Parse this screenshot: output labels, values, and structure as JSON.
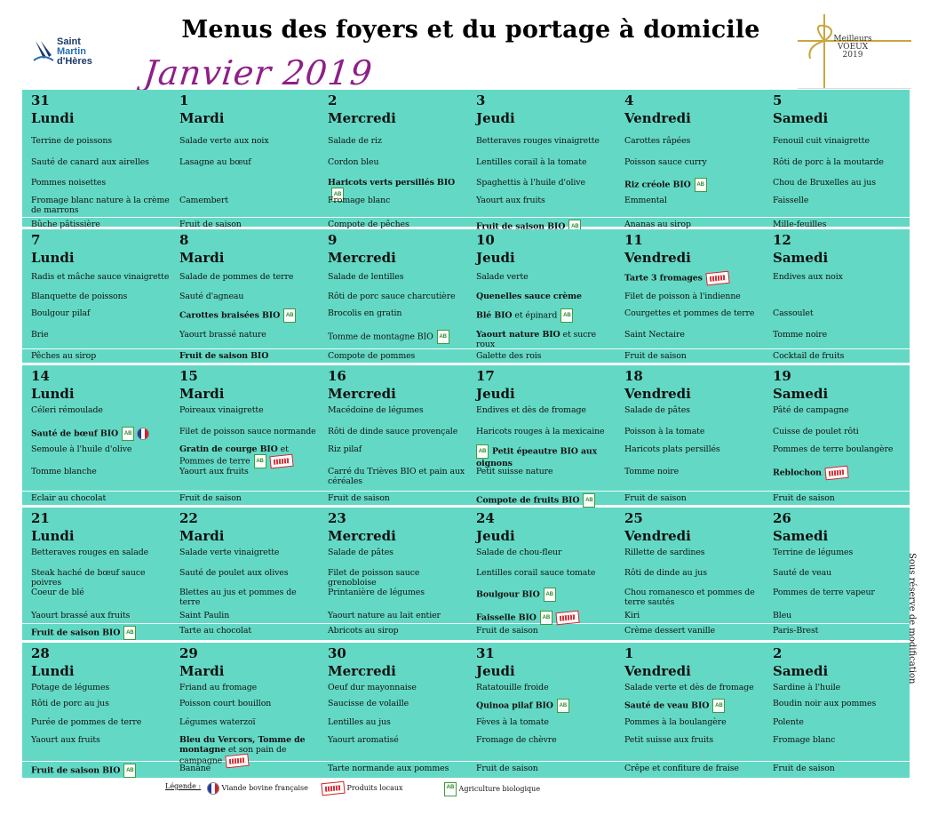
{
  "header": {
    "logo_lines": [
      "Saint",
      "Martin",
      "d'Hères"
    ],
    "title": "Menus des foyers et du portage à domicile",
    "month": "Janvier 2019",
    "greeting_lines": [
      "Meilleurs",
      "VOEUX",
      "2019"
    ]
  },
  "side_note": "Sous réserve de modification",
  "legend": {
    "label": "Légende :",
    "items": [
      "Viande bovine française",
      "Produits locaux",
      "Agriculture biologique"
    ]
  },
  "weeks": [
    {
      "days": [
        {
          "num": "31",
          "wd": "Lundi",
          "dishes": [
            {
              "t": "Terrine de poissons"
            },
            {
              "t": "Sauté de canard aux airelles"
            },
            {
              "t": "Pommes noisettes"
            },
            {
              "t": "Fromage blanc nature à la crème de marrons"
            },
            {
              "t": "Bûche pâtissière"
            }
          ]
        },
        {
          "num": "1",
          "wd": "Mardi",
          "dishes": [
            {
              "t": "Salade verte aux noix"
            },
            {
              "t": "Lasagne au bœuf"
            },
            {
              "t": ""
            },
            {
              "t": "Camembert"
            },
            {
              "t": "Fruit de saison"
            }
          ]
        },
        {
          "num": "2",
          "wd": "Mercredi",
          "dishes": [
            {
              "t": "Salade de riz"
            },
            {
              "t": "Cordon bleu"
            },
            {
              "t": "Haricots verts persillés BIO",
              "b": true,
              "bio": true
            },
            {
              "t": "Fromage blanc"
            },
            {
              "t": "Compote de pêches"
            }
          ]
        },
        {
          "num": "3",
          "wd": "Jeudi",
          "dishes": [
            {
              "t": "Betteraves rouges vinaigrette"
            },
            {
              "t": "Lentilles corail à la tomate"
            },
            {
              "t": "Spaghettis à l'huile d'olive"
            },
            {
              "t": "Yaourt aux fruits"
            },
            {
              "t": "Fruit de saison BIO",
              "b": true,
              "bio": true
            }
          ]
        },
        {
          "num": "4",
          "wd": "Vendredi",
          "dishes": [
            {
              "t": "Carottes râpées"
            },
            {
              "t": "Poisson sauce curry"
            },
            {
              "t": "Riz créole BIO",
              "b": true,
              "bio": true
            },
            {
              "t": "Emmental"
            },
            {
              "t": "Ananas au sirop"
            }
          ]
        },
        {
          "num": "5",
          "wd": "Samedi",
          "dishes": [
            {
              "t": "Fenouil cuit vinaigrette"
            },
            {
              "t": "Rôti de porc à la moutarde"
            },
            {
              "t": "Chou de Bruxelles au jus"
            },
            {
              "t": "Faisselle"
            },
            {
              "t": "Mille-feuilles"
            }
          ]
        }
      ]
    },
    {
      "days": [
        {
          "num": "7",
          "wd": "Lundi",
          "dishes": [
            {
              "t": "Radis et mâche sauce vinaigrette"
            },
            {
              "t": "Blanquette de poissons"
            },
            {
              "t": "Boulgour pilaf"
            },
            {
              "t": "Brie"
            },
            {
              "t": "Pêches au sirop"
            }
          ]
        },
        {
          "num": "8",
          "wd": "Mardi",
          "dishes": [
            {
              "t": "Salade de pommes de terre"
            },
            {
              "t": "Sauté d'agneau"
            },
            {
              "t": "Carottes braisées BIO",
              "b": true,
              "bio": true
            },
            {
              "t": "Yaourt brassé nature"
            },
            {
              "t": "Fruit de saison BIO",
              "b": true
            }
          ]
        },
        {
          "num": "9",
          "wd": "Mercredi",
          "dishes": [
            {
              "t": "Salade de lentilles"
            },
            {
              "t": "Rôti de porc sauce charcutière"
            },
            {
              "t": "Brocolis en gratin"
            },
            {
              "t": "Tomme de montagne BIO",
              "bio": true
            },
            {
              "t": "Compote de pommes"
            }
          ]
        },
        {
          "num": "10",
          "wd": "Jeudi",
          "dishes": [
            {
              "t": "Salade verte"
            },
            {
              "t": "Quenelles sauce crème",
              "b": true
            },
            {
              "t": "Blé BIO et épinard",
              "bb": "Blé BIO",
              "rest": " et épinard",
              "bio": true
            },
            {
              "t": "Yaourt nature BIO et sucre roux",
              "bb": "Yaourt nature BIO",
              "rest": " et sucre roux"
            },
            {
              "t": "Galette des rois"
            }
          ]
        },
        {
          "num": "11",
          "wd": "Vendredi",
          "dishes": [
            {
              "t": "Tarte 3 fromages",
              "b": true,
              "local": true
            },
            {
              "t": "Filet de poisson à l'indienne"
            },
            {
              "t": "Courgettes et pommes de terre"
            },
            {
              "t": "Saint Nectaire"
            },
            {
              "t": "Fruit de saison"
            }
          ]
        },
        {
          "num": "12",
          "wd": "Samedi",
          "dishes": [
            {
              "t": "Endives aux noix"
            },
            {
              "t": ""
            },
            {
              "t": "Cassoulet"
            },
            {
              "t": "Tomme noire"
            },
            {
              "t": "Cocktail de fruits"
            }
          ]
        }
      ]
    },
    {
      "days": [
        {
          "num": "14",
          "wd": "Lundi",
          "dishes": [
            {
              "t": "Céleri rémoulade"
            },
            {
              "t": "Sauté de bœuf BIO",
              "b": true,
              "bio": true,
              "fr": true
            },
            {
              "t": "Semoule à l'huile d'olive"
            },
            {
              "t": "Tomme blanche"
            },
            {
              "t": "Eclair au chocolat"
            }
          ]
        },
        {
          "num": "15",
          "wd": "Mardi",
          "dishes": [
            {
              "t": "Poireaux vinaigrette"
            },
            {
              "t": "Filet de poisson sauce normande"
            },
            {
              "t": "Gratin de courge BIO et Pommes de terre",
              "bb": "Gratin de courge BIO",
              "rest": " et Pommes de terre",
              "bio": true,
              "local": true
            },
            {
              "t": "Yaourt aux fruits"
            },
            {
              "t": "Fruit de saison"
            }
          ]
        },
        {
          "num": "16",
          "wd": "Mercredi",
          "dishes": [
            {
              "t": "Macédoine de légumes"
            },
            {
              "t": "Rôti de dinde sauce provençale"
            },
            {
              "t": "Riz pilaf"
            },
            {
              "t": "Carré du Trièves BIO et pain aux céréales"
            },
            {
              "t": "Fruit de saison"
            }
          ]
        },
        {
          "num": "17",
          "wd": "Jeudi",
          "dishes": [
            {
              "t": "Endives et dès de fromage"
            },
            {
              "t": "Haricots rouges à la mexicaine"
            },
            {
              "t": "Petit épeautre BIO aux oignons",
              "b": true,
              "bioBefore": true
            },
            {
              "t": "Petit suisse nature"
            },
            {
              "t": "Compote de fruits BIO",
              "b": true,
              "bio": true
            }
          ]
        },
        {
          "num": "18",
          "wd": "Vendredi",
          "dishes": [
            {
              "t": "Salade de pâtes"
            },
            {
              "t": "Poisson à la tomate"
            },
            {
              "t": "Haricots plats persillés"
            },
            {
              "t": "Tomme noire"
            },
            {
              "t": "Fruit de saison"
            }
          ]
        },
        {
          "num": "19",
          "wd": "Samedi",
          "dishes": [
            {
              "t": "Pâté de campagne"
            },
            {
              "t": "Cuisse de poulet rôti"
            },
            {
              "t": "Pommes de terre boulangère"
            },
            {
              "t": "Reblochon",
              "b": true,
              "local": true
            },
            {
              "t": "Fruit de saison"
            }
          ]
        }
      ]
    },
    {
      "days": [
        {
          "num": "21",
          "wd": "Lundi",
          "dishes": [
            {
              "t": "Betteraves rouges en salade"
            },
            {
              "t": "Steak haché de bœuf sauce poivres"
            },
            {
              "t": "Coeur de blé"
            },
            {
              "t": "Yaourt brassé aux fruits"
            },
            {
              "t": "Fruit de saison BIO",
              "b": true,
              "bio": true
            }
          ]
        },
        {
          "num": "22",
          "wd": "Mardi",
          "dishes": [
            {
              "t": "Salade verte vinaigrette"
            },
            {
              "t": "Sauté de poulet aux olives"
            },
            {
              "t": "Blettes au jus et pommes de terre"
            },
            {
              "t": "Saint Paulin"
            },
            {
              "t": "Tarte au chocolat"
            }
          ]
        },
        {
          "num": "23",
          "wd": "Mercredi",
          "dishes": [
            {
              "t": "Salade de pâtes"
            },
            {
              "t": "Filet de poisson sauce grenobloise"
            },
            {
              "t": "Printanière de légumes"
            },
            {
              "t": "Yaourt nature au lait entier"
            },
            {
              "t": "Abricots au sirop"
            }
          ]
        },
        {
          "num": "24",
          "wd": "Jeudi",
          "dishes": [
            {
              "t": "Salade de chou-fleur"
            },
            {
              "t": "Lentilles corail sauce tomate"
            },
            {
              "t": "Boulgour BIO",
              "b": true,
              "bio": true
            },
            {
              "t": "Faisselle BIO",
              "b": true,
              "bio": true,
              "local": true
            },
            {
              "t": "Fruit de saison"
            }
          ]
        },
        {
          "num": "25",
          "wd": "Vendredi",
          "dishes": [
            {
              "t": "Rillette de sardines"
            },
            {
              "t": "Rôti de dinde au jus"
            },
            {
              "t": "Chou romanesco et pommes de terre sautés"
            },
            {
              "t": "Kiri"
            },
            {
              "t": "Crème dessert vanille"
            }
          ]
        },
        {
          "num": "26",
          "wd": "Samedi",
          "dishes": [
            {
              "t": "Terrine de légumes"
            },
            {
              "t": "Sauté de veau"
            },
            {
              "t": "Pommes de terre vapeur"
            },
            {
              "t": "Bleu"
            },
            {
              "t": "Paris-Brest"
            }
          ]
        }
      ]
    },
    {
      "days": [
        {
          "num": "28",
          "wd": "Lundi",
          "dishes": [
            {
              "t": "Potage de légumes"
            },
            {
              "t": "Rôti de porc au jus"
            },
            {
              "t": "Purée de pommes de terre"
            },
            {
              "t": "Yaourt aux fruits"
            },
            {
              "t": "Fruit de saison BIO",
              "b": true,
              "bio": true
            }
          ]
        },
        {
          "num": "29",
          "wd": "Mardi",
          "dishes": [
            {
              "t": "Friand au fromage"
            },
            {
              "t": "Poisson court bouillon"
            },
            {
              "t": "Légumes waterzoï"
            },
            {
              "t": "Bleu du Vercors, Tomme de montagne et son pain de campagne",
              "bb": "Bleu du Vercors, Tomme de montagne",
              "rest": " et son pain de campagne",
              "local": true
            },
            {
              "t": "Banane"
            }
          ]
        },
        {
          "num": "30",
          "wd": "Mercredi",
          "dishes": [
            {
              "t": "Oeuf dur mayonnaise"
            },
            {
              "t": "Saucisse de volaille"
            },
            {
              "t": "Lentilles au jus"
            },
            {
              "t": "Yaourt aromatisé"
            },
            {
              "t": "Tarte normande aux pommes"
            }
          ]
        },
        {
          "num": "31",
          "wd": "Jeudi",
          "dishes": [
            {
              "t": "Ratatouille froide"
            },
            {
              "t": "Quinoa pilaf BIO",
              "b": true,
              "bio": true
            },
            {
              "t": "Fèves à la tomate"
            },
            {
              "t": "Fromage de chèvre"
            },
            {
              "t": "Fruit de saison"
            }
          ]
        },
        {
          "num": "1",
          "wd": "Vendredi",
          "dishes": [
            {
              "t": "Salade verte et dès de fromage"
            },
            {
              "t": "Sauté de veau BIO",
              "b": true,
              "bio": true
            },
            {
              "t": "Pommes à la  boulangère"
            },
            {
              "t": "Petit suisse aux fruits"
            },
            {
              "t": "Crêpe et confiture de fraise"
            }
          ]
        },
        {
          "num": "2",
          "wd": "Samedi",
          "dishes": [
            {
              "t": "Sardine à l'huile"
            },
            {
              "t": "Boudin noir aux pommes"
            },
            {
              "t": "Polente"
            },
            {
              "t": "Fromage blanc"
            },
            {
              "t": "Fruit de saison"
            }
          ]
        }
      ]
    }
  ]
}
